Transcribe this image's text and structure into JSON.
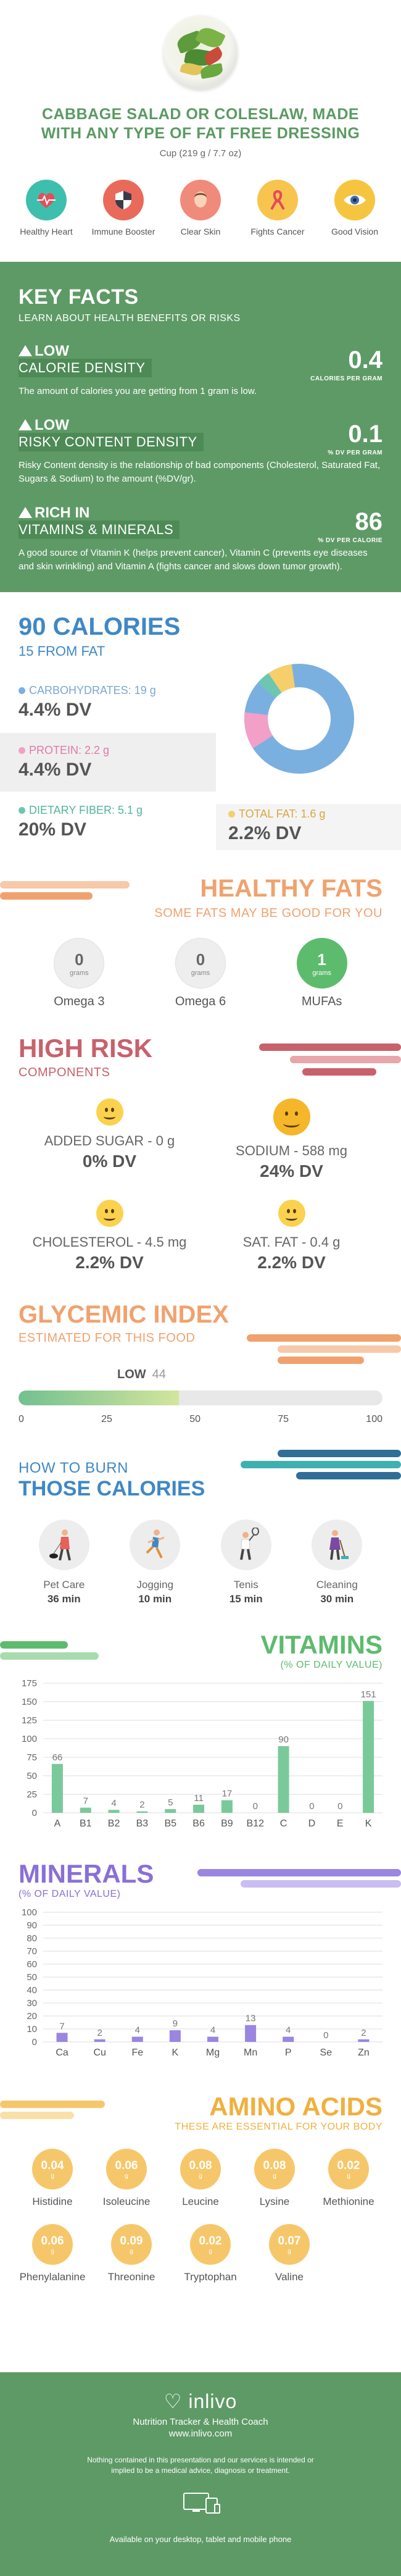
{
  "header": {
    "title": "CABBAGE SALAD OR COLESLAW, MADE WITH ANY TYPE OF FAT FREE DRESSING",
    "serving": "Cup (219 g / 7.7 oz)"
  },
  "benefits": [
    {
      "label": "Healthy Heart",
      "icon": "heart-pulse-icon",
      "color": "#3ebfad"
    },
    {
      "label": "Immune Booster",
      "icon": "shield-icon",
      "color": "#e96a5a"
    },
    {
      "label": "Clear Skin",
      "icon": "face-icon",
      "color": "#f08a7a"
    },
    {
      "label": "Fights Cancer",
      "icon": "ribbon-icon",
      "color": "#f07070"
    },
    {
      "label": "Good Vision",
      "icon": "eye-icon",
      "color": "#f6c53f"
    }
  ],
  "key_facts": {
    "heading": "KEY FACTS",
    "subheading": "LEARN ABOUT HEALTH BENEFITS OR RISKS",
    "calorie": {
      "level": "LOW",
      "band": "CALORIE DENSITY",
      "value": "0.4",
      "unit": "CALORIES PER GRAM",
      "desc": "The amount of calories you are getting from 1 gram is low."
    },
    "risky": {
      "level": "LOW",
      "band": "RISKY CONTENT DENSITY",
      "value": "0.1",
      "unit": "% DV PER GRAM",
      "desc": "Risky Content density is the relationship of bad components (Cholesterol, Saturated Fat, Sugars & Sodium) to the amount (%DV/gr)."
    },
    "rich": {
      "level": "RICH  IN",
      "band": "VITAMINS & MINERALS",
      "value": "86",
      "unit": "% DV PER CALORIE",
      "desc": "A good source of Vitamin K (helps prevent cancer), Vitamin C (prevents eye diseases and skin wrinkling) and Vitamin A (fights cancer and slows down tumor growth)."
    }
  },
  "calories": {
    "heading": "90 CALORIES",
    "sub": "15 FROM FAT",
    "carbs": {
      "label": "CARBOHYDRATES: 19 g",
      "dv": "4.4% DV",
      "color": "#7ab0e0"
    },
    "protein": {
      "label": "PROTEIN: 2.2 g",
      "dv": "4.4% DV",
      "color": "#f2a0c8"
    },
    "fiber": {
      "label": "DIETARY FIBER: 5.1 g",
      "dv": "20% DV",
      "color": "#6dc6b2"
    },
    "fat": {
      "label": "TOTAL FAT: 1.6 g",
      "dv": "2.2% DV",
      "color": "#f6cf6b"
    }
  },
  "healthy_fats": {
    "heading": "HEALTHY FATS",
    "sub": "SOME FATS MAY BE GOOD FOR YOU",
    "unit": "grams",
    "items": [
      {
        "name": "Omega 3",
        "value": "0"
      },
      {
        "name": "Omega 6",
        "value": "0"
      },
      {
        "name": "MUFAs",
        "value": "1"
      }
    ]
  },
  "high_risk": {
    "heading": "HIGH RISK",
    "sub": "COMPONENTS",
    "items": [
      {
        "label": "ADDED SUGAR - 0 g",
        "dv": "0% DV"
      },
      {
        "label": "SODIUM - 588 mg",
        "dv": "24% DV"
      },
      {
        "label": "CHOLESTEROL - 4.5 mg",
        "dv": "2.2% DV"
      },
      {
        "label": "SAT. FAT - 0.4 g",
        "dv": "2.2% DV"
      }
    ]
  },
  "glycemic": {
    "heading": "GLYCEMIC INDEX",
    "sub": "ESTIMATED FOR THIS FOOD",
    "level": "LOW",
    "value": "44",
    "ticks": [
      "0",
      "25",
      "50",
      "75",
      "100"
    ]
  },
  "burn": {
    "sub": "HOW TO BURN",
    "heading": "THOSE CALORIES",
    "items": [
      {
        "name": "Pet Care",
        "time": "36 min",
        "icon": "dog-walker-icon"
      },
      {
        "name": "Jogging",
        "time": "10 min",
        "icon": "jogger-icon"
      },
      {
        "name": "Tenis",
        "time": "15 min",
        "icon": "tennis-player-icon"
      },
      {
        "name": "Cleaning",
        "time": "30 min",
        "icon": "cleaner-icon"
      }
    ]
  },
  "vitamins": {
    "heading": "VITAMINS",
    "sub": "(% OF DAILY VALUE)"
  },
  "minerals": {
    "heading": "MINERALS",
    "sub": "(% OF DAILY VALUE)"
  },
  "chart_data": [
    {
      "type": "bar",
      "title": "VITAMINS",
      "categories": [
        "A",
        "B1",
        "B2",
        "B3",
        "B5",
        "B6",
        "B9",
        "B12",
        "C",
        "D",
        "E",
        "K"
      ],
      "values": [
        66,
        7,
        4,
        2,
        5,
        11,
        17,
        0,
        90,
        0,
        0,
        151
      ],
      "yticks": [
        0,
        25,
        50,
        75,
        100,
        125,
        150,
        175
      ],
      "ylim": [
        0,
        175
      ],
      "color": "#7ac99a"
    },
    {
      "type": "bar",
      "title": "MINERALS",
      "categories": [
        "Ca",
        "Cu",
        "Fe",
        "K",
        "Mg",
        "Mn",
        "P",
        "Se",
        "Zn"
      ],
      "values": [
        7,
        2,
        4,
        9,
        4,
        13,
        4,
        0,
        2
      ],
      "yticks": [
        0,
        10,
        20,
        30,
        40,
        50,
        60,
        70,
        80,
        90,
        100
      ],
      "ylim": [
        0,
        100
      ],
      "color": "#9a86e0"
    }
  ],
  "amino": {
    "heading": "AMINO ACIDS",
    "sub": "THESE ARE ESSENTIAL FOR YOUR BODY",
    "unit": "g",
    "items": [
      {
        "name": "Histidine",
        "value": "0.04"
      },
      {
        "name": "Isoleucine",
        "value": "0.06"
      },
      {
        "name": "Leucine",
        "value": "0.08"
      },
      {
        "name": "Lysine",
        "value": "0.08"
      },
      {
        "name": "Methionine",
        "value": "0.02"
      },
      {
        "name": "Phenylalanine",
        "value": "0.06"
      },
      {
        "name": "Threonine",
        "value": "0.09"
      },
      {
        "name": "Tryptophan",
        "value": "0.02"
      },
      {
        "name": "Valine",
        "value": "0.07"
      }
    ]
  },
  "footer": {
    "brand": "inlivo",
    "tagline": "Nutrition Tracker & Health Coach",
    "url": "www.inlivo.com",
    "disclaimer": "Nothing contained in this presentation and our services is intended or implied to be a medical advice, diagnosis or treatment.",
    "available": "Available on your desktop, tablet and mobile phone"
  }
}
